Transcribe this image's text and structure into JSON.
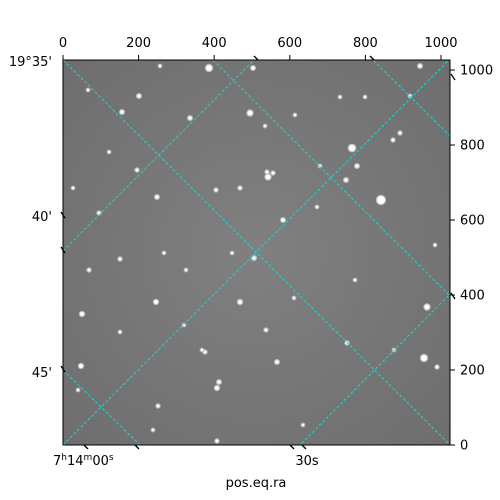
{
  "pixel_axes": {
    "x_ticks": [
      "0",
      "200",
      "400",
      "600",
      "800",
      "1000"
    ],
    "y_ticks": [
      "0",
      "200",
      "400",
      "600",
      "800",
      "1000"
    ]
  },
  "sky_axes": {
    "dec_ticks": [
      "19°35'",
      "40'",
      "45'"
    ],
    "ra_tick_main": {
      "h": "7",
      "m": "14",
      "s": "00",
      "h_unit": "h",
      "m_unit": "m",
      "s_unit": "s"
    },
    "ra_tick_second": "30s",
    "xlabel": "pos.eq.ra"
  },
  "colors": {
    "grid": "#17d7d7",
    "sky_background": "#7a7a7a",
    "frame": "#000000"
  }
}
